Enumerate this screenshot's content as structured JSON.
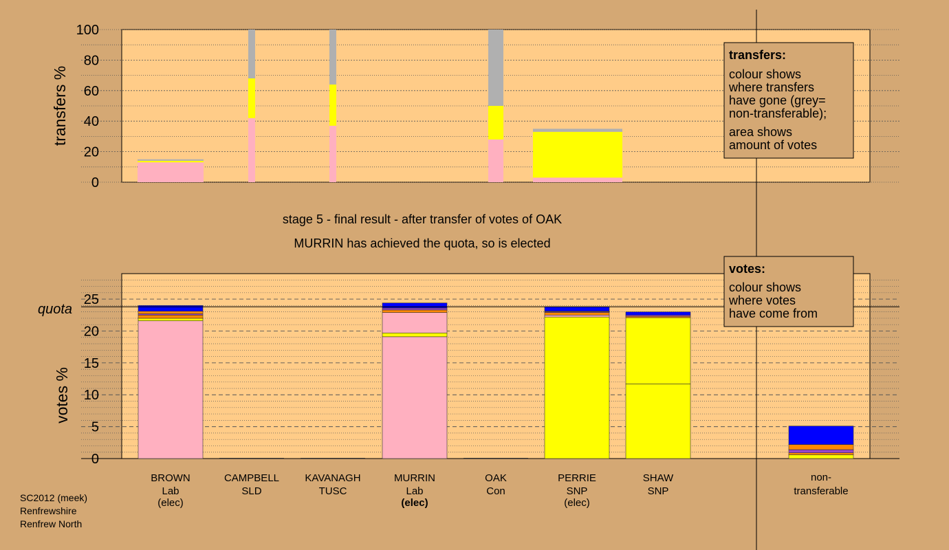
{
  "chart_data": [
    {
      "type": "bar",
      "ylabel": "transfers %",
      "ylim": [
        0,
        100
      ],
      "yticks": [
        "0",
        "20",
        "40",
        "60",
        "80",
        "100"
      ],
      "grid": true,
      "legend": {
        "title": "transfers:",
        "lines1": [
          "colour shows",
          "where transfers",
          "have gone (grey=",
          "non-transferable);"
        ],
        "lines2": [
          "area shows",
          "amount of votes"
        ]
      },
      "transfers": [
        {
          "candidate": "BROWN",
          "share_width": "wide",
          "segments": [
            {
              "colour": "pink",
              "value": 13
            },
            {
              "colour": "yellow",
              "value": 1
            },
            {
              "colour": "grey",
              "value": 1
            }
          ]
        },
        {
          "candidate": "CAMPBELL",
          "share_width": "thin",
          "segments": [
            {
              "colour": "pink",
              "value": 42
            },
            {
              "colour": "yellow",
              "value": 26
            },
            {
              "colour": "grey",
              "value": 32
            }
          ]
        },
        {
          "candidate": "KAVANAGH",
          "share_width": "thin",
          "segments": [
            {
              "colour": "pink",
              "value": 37
            },
            {
              "colour": "yellow",
              "value": 27
            },
            {
              "colour": "grey",
              "value": 36
            }
          ]
        },
        {
          "candidate": "OAK",
          "share_width": "medium",
          "segments": [
            {
              "colour": "pink",
              "value": 28
            },
            {
              "colour": "yellow",
              "value": 22
            },
            {
              "colour": "grey",
              "value": 50
            }
          ]
        },
        {
          "candidate": "PERRIE",
          "share_width": "wide",
          "segments": [
            {
              "colour": "pink",
              "value": 3
            },
            {
              "colour": "yellow",
              "value": 30
            },
            {
              "colour": "grey",
              "value": 2
            }
          ]
        }
      ]
    },
    {
      "type": "bar",
      "ylabel": "votes %",
      "ylim": [
        0,
        29
      ],
      "yticks": [
        "0",
        "5",
        "10",
        "15",
        "20",
        "25"
      ],
      "quota": 23.8,
      "quota_label": "quota",
      "grid": true,
      "legend": {
        "title": "votes:",
        "lines1": [
          "colour shows",
          "where votes",
          "have come from"
        ]
      },
      "candidates": [
        {
          "name": "BROWN",
          "party": "Lab",
          "status": "(elec)",
          "status_bold": false,
          "segments": [
            {
              "colour": "pink",
              "value": 21.6
            },
            {
              "colour": "yellow",
              "value": 0.4
            },
            {
              "colour": "orange",
              "value": 0.5
            },
            {
              "colour": "purple",
              "value": 0.2
            },
            {
              "colour": "orange",
              "value": 0.4
            },
            {
              "colour": "blue",
              "value": 0.9
            }
          ]
        },
        {
          "name": "CAMPBELL",
          "party": "SLD",
          "status": "",
          "status_bold": false,
          "segments": []
        },
        {
          "name": "KAVANAGH",
          "party": "TUSC",
          "status": "",
          "status_bold": false,
          "segments": []
        },
        {
          "name": "MURRIN",
          "party": "Lab",
          "status": "(elec)",
          "status_bold": true,
          "segments": [
            {
              "colour": "pink",
              "value": 19.1
            },
            {
              "colour": "yellow",
              "value": 0.6
            },
            {
              "colour": "pink",
              "value": 3.2
            },
            {
              "colour": "orange",
              "value": 0.4
            },
            {
              "colour": "purple",
              "value": 0.3
            },
            {
              "colour": "blue",
              "value": 0.8
            }
          ]
        },
        {
          "name": "OAK",
          "party": "Con",
          "status": "",
          "status_bold": false,
          "segments": []
        },
        {
          "name": "PERRIE",
          "party": "SNP",
          "status": "(elec)",
          "status_bold": false,
          "segments": [
            {
              "colour": "yellow",
              "value": 22.2
            },
            {
              "colour": "pink",
              "value": 0.3
            },
            {
              "colour": "orange",
              "value": 0.4
            },
            {
              "colour": "purple",
              "value": 0.1
            },
            {
              "colour": "orange",
              "value": 0.1
            },
            {
              "colour": "blue",
              "value": 0.7
            }
          ]
        },
        {
          "name": "SHAW",
          "party": "SNP",
          "status": "",
          "status_bold": false,
          "segments": [
            {
              "colour": "yellow",
              "value": 11.7
            },
            {
              "colour": "yellow",
              "value": 10.4
            },
            {
              "colour": "orange",
              "value": 0.2
            },
            {
              "colour": "purple",
              "value": 0.2
            },
            {
              "colour": "blue",
              "value": 0.5
            }
          ]
        }
      ],
      "nontransferable": {
        "label_line1": "non-",
        "label_line2": "transferable",
        "segments": [
          {
            "colour": "yellow",
            "value": 0.6
          },
          {
            "colour": "orange",
            "value": 0.3
          },
          {
            "colour": "purple",
            "value": 0.5
          },
          {
            "colour": "orange",
            "value": 0.8
          },
          {
            "colour": "blue",
            "value": 2.9
          }
        ]
      }
    }
  ],
  "caption": {
    "line1": "stage 5 - final result - after transfer of votes of OAK",
    "line2": "MURRIN has achieved the quota, so is elected"
  },
  "footer": [
    "SC2012 (meek)",
    "Renfrewshire",
    "Renfrew North"
  ],
  "colors": {
    "background": "#d4a874",
    "plot": "#ffcc88",
    "pink": "#ffb0c0",
    "yellow": "#ffff00",
    "grey": "#b0b0b0",
    "orange": "#ff8800",
    "purple": "#9944cc",
    "blue": "#0000ff"
  }
}
